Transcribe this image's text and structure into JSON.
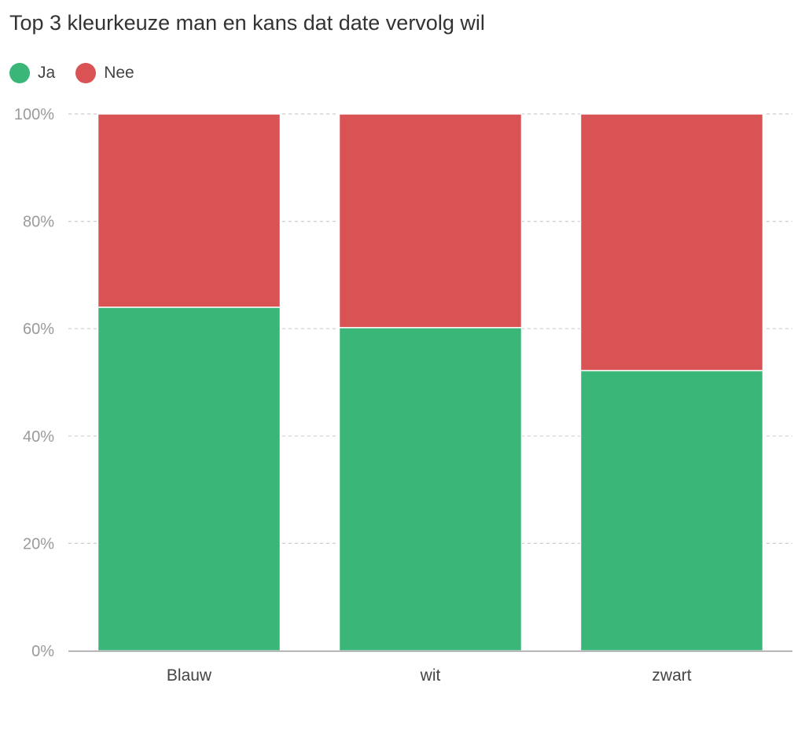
{
  "chart_data": {
    "type": "bar",
    "stacked": true,
    "title": "Top 3 kleurkeuze man en kans dat date vervolg wil",
    "categories": [
      "Blauw",
      "wit",
      "zwart"
    ],
    "series": [
      {
        "name": "Ja",
        "values": [
          64,
          60.2,
          52.2
        ],
        "color": "#3ab678"
      },
      {
        "name": "Nee",
        "values": [
          36,
          39.8,
          47.8
        ],
        "color": "#d95355"
      }
    ],
    "ylim": [
      0,
      100
    ],
    "yticks": [
      "0%",
      "20%",
      "40%",
      "60%",
      "80%",
      "100%"
    ],
    "grid": true,
    "legend_position": "top-left"
  }
}
